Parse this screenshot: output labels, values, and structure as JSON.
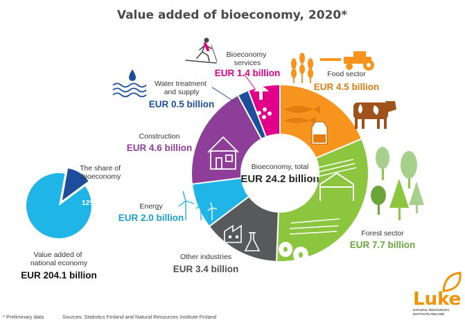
{
  "chart_data": {
    "type": "pie",
    "title": "Value added of bioeconomy, 2020*",
    "center": {
      "label": "Bioeconomy, total",
      "value": "EUR 24.2 billion"
    },
    "segments": [
      {
        "name": "Food sector",
        "value": 4.5,
        "label": "EUR 4.5 billion",
        "color": "#f7941d"
      },
      {
        "name": "Forest sector",
        "value": 7.7,
        "label": "EUR 7.7 billion",
        "color": "#8cc63f"
      },
      {
        "name": "Other industries",
        "value": 3.4,
        "label": "EUR 3.4 billion",
        "color": "#58595b"
      },
      {
        "name": "Energy",
        "value": 2.0,
        "label": "EUR 2.0 billion",
        "color": "#1fb5e6"
      },
      {
        "name": "Construction",
        "value": 4.6,
        "label": "EUR 4.6 billion",
        "color": "#8e3e99"
      },
      {
        "name": "Water treatment and supply",
        "value": 0.5,
        "label": "EUR 0.5 billion",
        "color": "#1c4e9c"
      },
      {
        "name": "Bioeconomy services",
        "value": 1.4,
        "label": "EUR 1.4 billion",
        "color": "#e2008a"
      }
    ],
    "share_pie": {
      "share_label_lines": [
        "The share of",
        "bioeconomy"
      ],
      "share_percent": 12,
      "share_text": "12%",
      "share_color": "#1c4e9c",
      "rest_color": "#1fb5e6",
      "national_label_lines": [
        "Value added of",
        "national economy"
      ],
      "national_value": "EUR 204.1 billion"
    }
  },
  "labels": {
    "food": [
      "Food sector"
    ],
    "forest": [
      "Forest sector"
    ],
    "other": [
      "Other industries"
    ],
    "energy": [
      "Energy"
    ],
    "construction": [
      "Construction"
    ],
    "water": [
      "Water treatment",
      "and supply"
    ],
    "services": [
      "Bioeconomy",
      "services"
    ]
  },
  "footer": {
    "note": "* Preliminary data",
    "sources": "Sources: Statistics Finland and Natural Resources Institute Finland"
  },
  "logo": {
    "name": "Luke",
    "sub_lines": [
      "NATURAL RESOURCES",
      "INSTITUTE FINLAND"
    ],
    "color": "#f39200"
  },
  "icons": [
    "skier-icon",
    "wheat-icon",
    "tractor-icon",
    "water-drop-icon",
    "waves-icon",
    "mushroom-icon",
    "berries-icon",
    "fish-icon",
    "milk-carton-icon",
    "cow-icon",
    "house-icon",
    "logs-icon",
    "frame-icon",
    "trees-icon",
    "paper-roll-icon",
    "factory-icon",
    "flask-icon",
    "wind-turbine-icon",
    "leaf-logo-icon"
  ]
}
